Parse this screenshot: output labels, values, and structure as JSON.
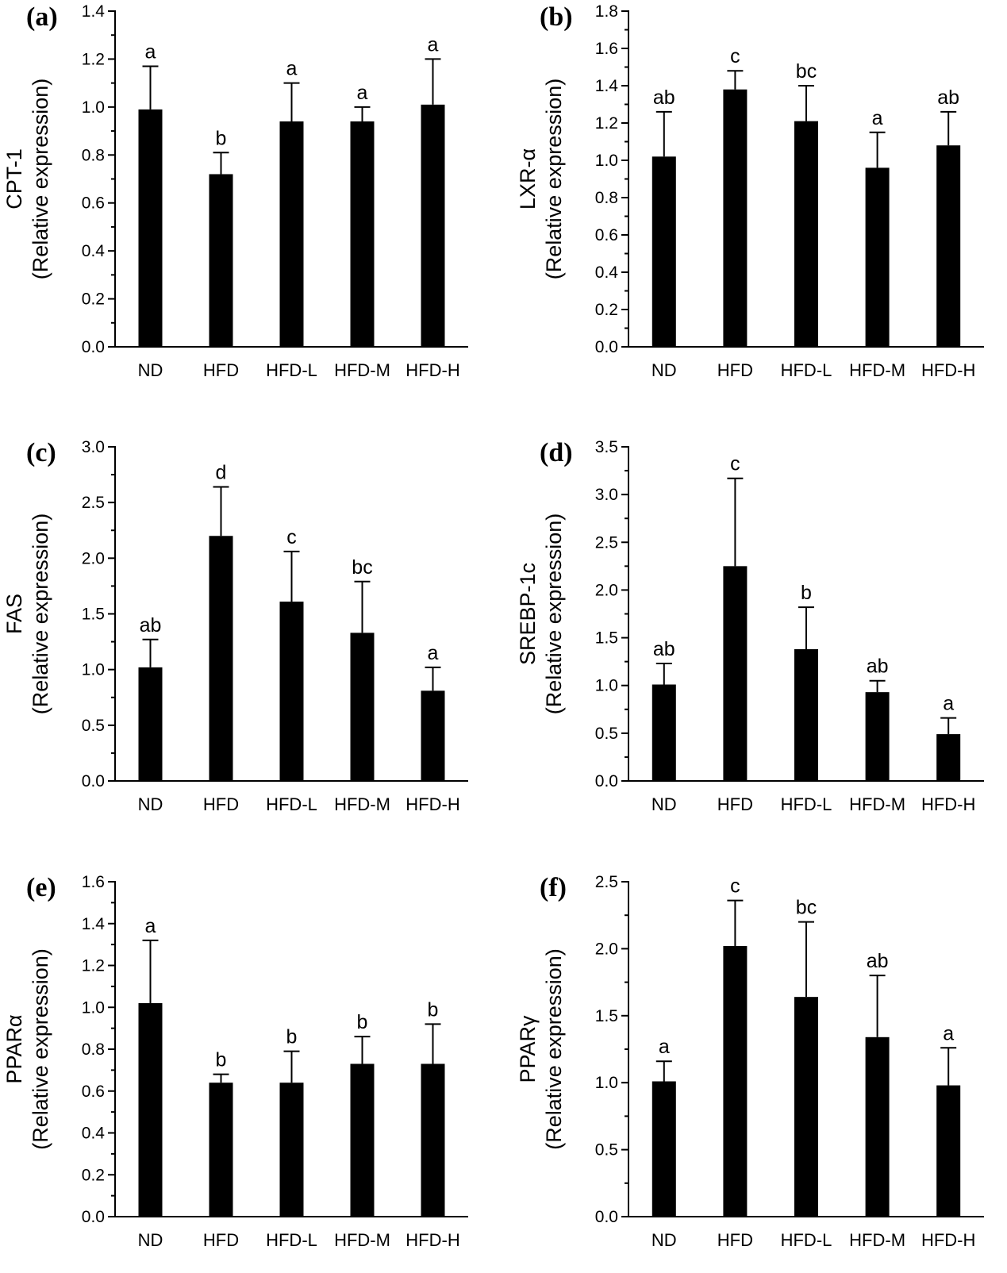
{
  "chart_data": [
    {
      "panel": "(a)",
      "type": "bar",
      "ylabel": [
        "CPT-1",
        "(Relative expression)"
      ],
      "ylim": [
        0,
        1.4
      ],
      "major": 0.2,
      "decimals": 1,
      "categories": [
        "ND",
        "HFD",
        "HFD-L",
        "HFD-M",
        "HFD-H"
      ],
      "values": [
        0.99,
        0.72,
        0.94,
        0.94,
        1.01
      ],
      "errors": [
        0.18,
        0.09,
        0.16,
        0.06,
        0.19
      ],
      "letters": [
        "a",
        "b",
        "a",
        "a",
        "a"
      ]
    },
    {
      "panel": "(b)",
      "type": "bar",
      "ylabel": [
        "LXR-α",
        "(Relative expression)"
      ],
      "ylim": [
        0,
        1.8
      ],
      "major": 0.2,
      "decimals": 1,
      "categories": [
        "ND",
        "HFD",
        "HFD-L",
        "HFD-M",
        "HFD-H"
      ],
      "values": [
        1.02,
        1.38,
        1.21,
        0.96,
        1.08
      ],
      "errors": [
        0.24,
        0.1,
        0.19,
        0.19,
        0.18
      ],
      "letters": [
        "ab",
        "c",
        "bc",
        "a",
        "ab"
      ]
    },
    {
      "panel": "(c)",
      "type": "bar",
      "ylabel": [
        "FAS",
        "(Relative expression)"
      ],
      "ylim": [
        0,
        3.0
      ],
      "major": 0.5,
      "decimals": 1,
      "categories": [
        "ND",
        "HFD",
        "HFD-L",
        "HFD-M",
        "HFD-H"
      ],
      "values": [
        1.02,
        2.2,
        1.61,
        1.33,
        0.81
      ],
      "errors": [
        0.25,
        0.44,
        0.45,
        0.46,
        0.21
      ],
      "letters": [
        "ab",
        "d",
        "c",
        "bc",
        "a"
      ]
    },
    {
      "panel": "(d)",
      "type": "bar",
      "ylabel": [
        "SREBP-1c",
        "(Relative expression)"
      ],
      "ylim": [
        0,
        3.5
      ],
      "major": 0.5,
      "decimals": 1,
      "categories": [
        "ND",
        "HFD",
        "HFD-L",
        "HFD-M",
        "HFD-H"
      ],
      "values": [
        1.01,
        2.25,
        1.38,
        0.93,
        0.49
      ],
      "errors": [
        0.22,
        0.92,
        0.44,
        0.12,
        0.17
      ],
      "letters": [
        "ab",
        "c",
        "b",
        "ab",
        "a"
      ]
    },
    {
      "panel": "(e)",
      "type": "bar",
      "ylabel": [
        "PPARα",
        "(Relative expression)"
      ],
      "ylim": [
        0,
        1.6
      ],
      "major": 0.2,
      "decimals": 1,
      "categories": [
        "ND",
        "HFD",
        "HFD-L",
        "HFD-M",
        "HFD-H"
      ],
      "values": [
        1.02,
        0.64,
        0.64,
        0.73,
        0.73
      ],
      "errors": [
        0.3,
        0.04,
        0.15,
        0.13,
        0.19
      ],
      "letters": [
        "a",
        "b",
        "b",
        "b",
        "b"
      ]
    },
    {
      "panel": "(f)",
      "type": "bar",
      "ylabel": [
        "PPARγ",
        "(Relative expression)"
      ],
      "ylim": [
        0,
        2.5
      ],
      "major": 0.5,
      "decimals": 1,
      "categories": [
        "ND",
        "HFD",
        "HFD-L",
        "HFD-M",
        "HFD-H"
      ],
      "values": [
        1.01,
        2.02,
        1.64,
        1.34,
        0.98
      ],
      "errors": [
        0.15,
        0.34,
        0.56,
        0.46,
        0.28
      ],
      "letters": [
        "a",
        "c",
        "bc",
        "ab",
        "a"
      ]
    }
  ]
}
